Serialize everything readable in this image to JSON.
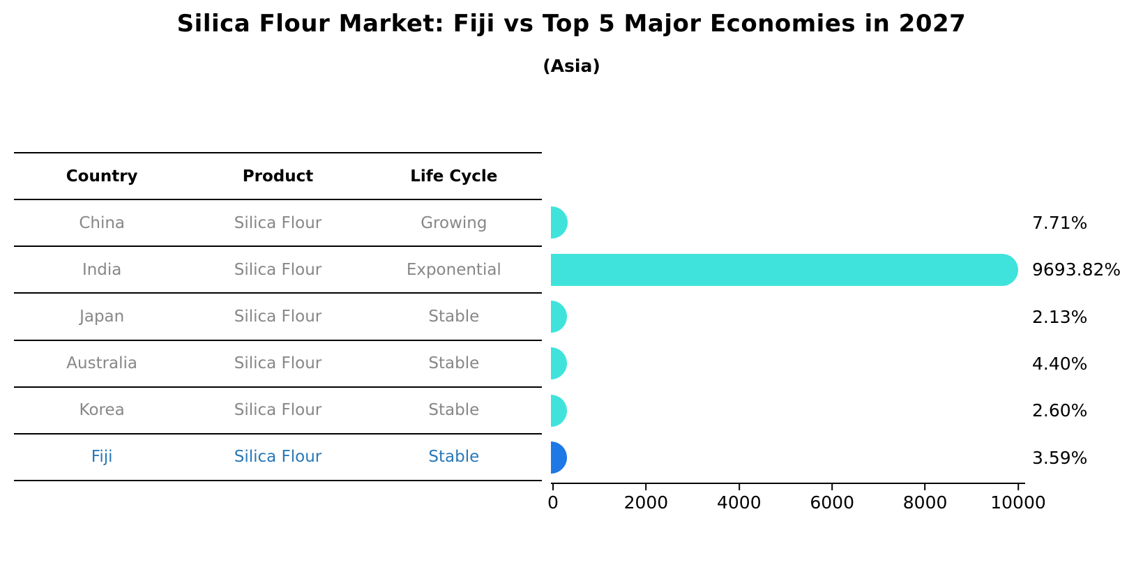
{
  "title": "Silica Flour Market: Fiji vs Top 5 Major Economies in 2027",
  "subtitle": "(Asia)",
  "table": {
    "headers": [
      "Country",
      "Product",
      "Life Cycle"
    ],
    "rows": [
      {
        "country": "China",
        "product": "Silica Flour",
        "life_cycle": "Growing",
        "highlight": false
      },
      {
        "country": "India",
        "product": "Silica Flour",
        "life_cycle": "Exponential",
        "highlight": false
      },
      {
        "country": "Japan",
        "product": "Silica Flour",
        "life_cycle": "Stable",
        "highlight": false
      },
      {
        "country": "Australia",
        "product": "Silica Flour",
        "life_cycle": "Stable",
        "highlight": false
      },
      {
        "country": "Korea",
        "product": "Silica Flour",
        "life_cycle": "Stable",
        "highlight": false
      },
      {
        "country": "Fiji",
        "product": "Silica Flour",
        "life_cycle": "Stable",
        "highlight": true
      }
    ]
  },
  "chart_data": {
    "type": "bar",
    "orientation": "horizontal",
    "title": "Silica Flour Market: Fiji vs Top 5 Major Economies in 2027",
    "subtitle": "(Asia)",
    "categories": [
      "China",
      "India",
      "Japan",
      "Australia",
      "Korea",
      "Fiji"
    ],
    "values": [
      7.71,
      9693.82,
      2.13,
      4.4,
      2.6,
      3.59
    ],
    "value_labels": [
      "7.71%",
      "9693.82%",
      "2.13%",
      "4.40%",
      "2.60%",
      "3.59%"
    ],
    "xlim": [
      0,
      10000
    ],
    "x_ticks": [
      0,
      2000,
      4000,
      6000,
      8000,
      10000
    ],
    "x_tick_labels": [
      "0",
      "2000",
      "4000",
      "6000",
      "8000",
      "10000"
    ],
    "grid": false,
    "legend": false,
    "bar_color": "#3FE3DC",
    "highlight_bar_color": "#1E78E6",
    "highlight_index": 5,
    "highlight_text_color": "#2878B8"
  },
  "colors": {
    "background": "#FFFFFF",
    "title_text": "#000000",
    "table_header_text": "#000000",
    "table_body_text": "#878787",
    "table_line": "#000000",
    "axis_line": "#000000",
    "value_label_text": "#000000"
  }
}
